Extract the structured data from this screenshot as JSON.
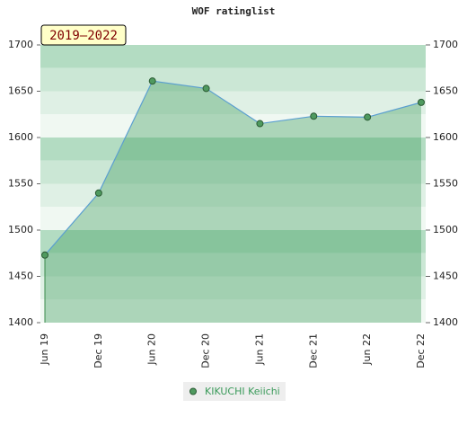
{
  "chart_data": {
    "type": "area",
    "title": "WOF ratinglist",
    "annotation": "2019–2022",
    "categories": [
      "Jun 19",
      "Dec 19",
      "Jun 20",
      "Dec 20",
      "Jun 21",
      "Dec 21",
      "Jun 22",
      "Dec 22"
    ],
    "series": [
      {
        "name": "KIKUCHI Keiichi",
        "color": "#5b9fd0",
        "values": [
          1473,
          1540,
          1661,
          1653,
          1615,
          1623,
          1622,
          1638
        ]
      }
    ],
    "ylim": [
      1400,
      1700
    ],
    "yticks": [
      1400,
      1450,
      1500,
      1550,
      1600,
      1650,
      1700
    ],
    "y2lim": [
      1400,
      1700
    ],
    "y2ticks": [
      1400,
      1450,
      1500,
      1550,
      1600,
      1650,
      1700
    ]
  }
}
